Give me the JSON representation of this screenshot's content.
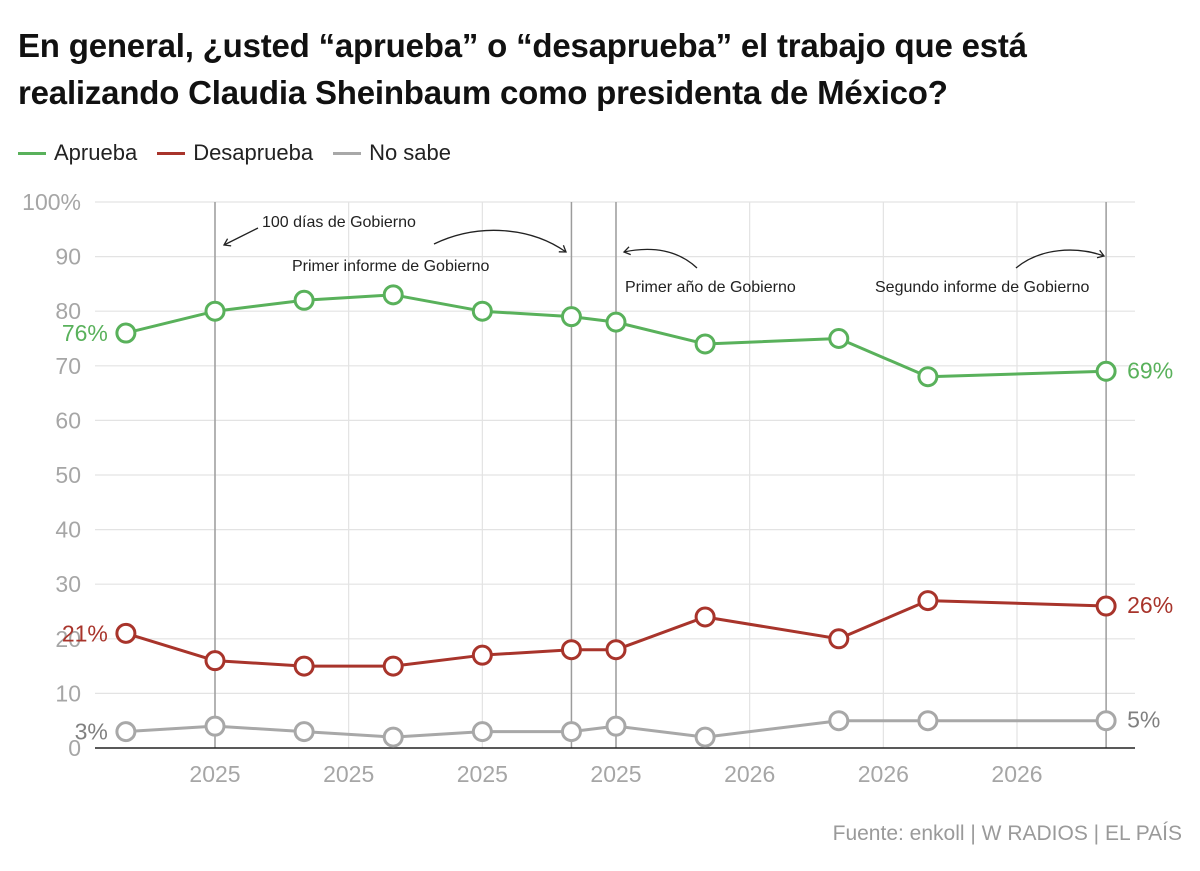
{
  "title": "En general, ¿usted “aprueba” o “desaprueba” el trabajo que está realizando Claudia Sheinbaum como presidenta de México?",
  "source": "Fuente: enkoll | W RADIOS | EL PAÍS",
  "colors": {
    "aprueba": "#59b15b",
    "desaprueba": "#a8342b",
    "no_sabe": "#a8a8a8",
    "grid": "#e3e3e3",
    "axis_text": "#a6a6a6",
    "event_line": "#9c9c9c"
  },
  "legend": [
    {
      "key": "aprueba",
      "label": "Aprueba"
    },
    {
      "key": "desaprueba",
      "label": "Desaprueba"
    },
    {
      "key": "no_sabe",
      "label": "No sabe"
    }
  ],
  "chart_data": {
    "type": "line",
    "title": "En general, ¿usted “aprueba” o “desaprueba” el trabajo que está realizando Claudia Sheinbaum como presidenta de México?",
    "xlabel": "",
    "ylabel": "",
    "x": [
      "2024-11",
      "2025-01",
      "2025-03",
      "2025-05",
      "2025-07",
      "2025-09",
      "2025-10",
      "2025-12",
      "2026-03",
      "2026-05",
      "2026-09"
    ],
    "x_ticks": [
      {
        "x": "2025-01",
        "label": "2025"
      },
      {
        "x": "2025-04",
        "label": "2025"
      },
      {
        "x": "2025-07",
        "label": "2025"
      },
      {
        "x": "2025-10",
        "label": "2025"
      },
      {
        "x": "2026-01",
        "label": "2026"
      },
      {
        "x": "2026-04",
        "label": "2026"
      },
      {
        "x": "2026-07",
        "label": "2026"
      }
    ],
    "ylim": [
      0,
      100
    ],
    "y_ticks": [
      "0",
      "10",
      "20",
      "30",
      "40",
      "50",
      "60",
      "70",
      "80",
      "90",
      "100%"
    ],
    "grid": true,
    "legend_position": "top-left",
    "series": [
      {
        "key": "aprueba",
        "name": "Aprueba",
        "values": [
          76,
          80,
          82,
          83,
          80,
          79,
          78,
          74,
          75,
          68,
          69
        ],
        "start_label": "76%",
        "end_label": "69%"
      },
      {
        "key": "desaprueba",
        "name": "Desaprueba",
        "values": [
          21,
          16,
          15,
          15,
          17,
          18,
          18,
          24,
          20,
          27,
          26
        ],
        "start_label": "21%",
        "end_label": "26%"
      },
      {
        "key": "no_sabe",
        "name": "No sabe",
        "values": [
          3,
          4,
          3,
          2,
          3,
          3,
          4,
          2,
          5,
          5,
          5
        ],
        "start_label": "3%",
        "end_label": "5%"
      }
    ],
    "events": [
      {
        "x": "2025-01",
        "label": "100 días de Gobierno"
      },
      {
        "x": "2025-09",
        "label": "Primer informe de Gobierno"
      },
      {
        "x": "2025-10",
        "label": "Primer año de Gobierno"
      },
      {
        "x": "2026-09",
        "label": "Segundo informe de Gobierno"
      }
    ]
  }
}
